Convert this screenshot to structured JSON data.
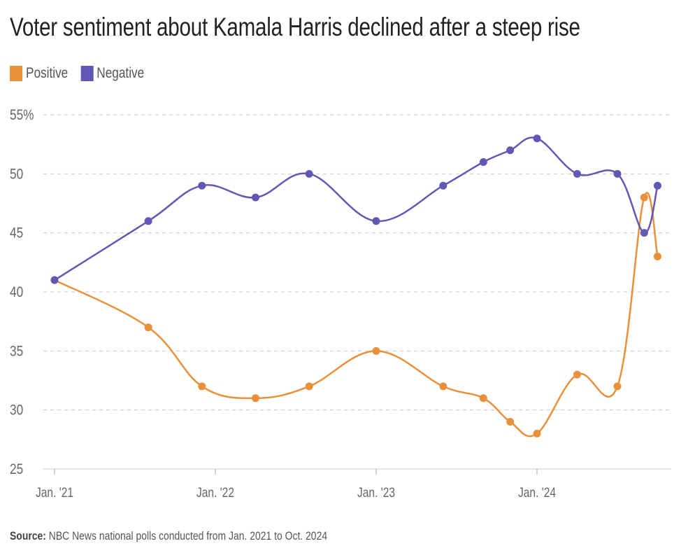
{
  "title": "Voter sentiment about Kamala Harris declined after a steep rise",
  "legend": [
    {
      "label": "Positive",
      "color": "#e8913a"
    },
    {
      "label": "Negative",
      "color": "#6158b4"
    }
  ],
  "source": {
    "label": "Source:",
    "text": "NBC News national polls conducted from Jan. 2021 to Oct. 2024"
  },
  "chart_data": {
    "type": "line",
    "xlabel": "",
    "ylabel": "",
    "ylim": [
      25,
      55
    ],
    "y_ticks": [
      25,
      30,
      35,
      40,
      45,
      50,
      55
    ],
    "y_tick_labels": [
      "25",
      "30",
      "35",
      "40",
      "45",
      "50",
      "55%"
    ],
    "x_ticks": [
      "2021-01",
      "2022-01",
      "2023-01",
      "2024-01"
    ],
    "x_tick_labels": [
      "Jan. '21",
      "Jan. '22",
      "Jan. '23",
      "Jan. '24"
    ],
    "grid": true,
    "legend_position": "top-left",
    "x": [
      "2021-01",
      "2021-08",
      "2021-12",
      "2022-04",
      "2022-08",
      "2023-01",
      "2023-06",
      "2023-09",
      "2023-11",
      "2024-01",
      "2024-04",
      "2024-07",
      "2024-09",
      "2024-10"
    ],
    "series": [
      {
        "name": "Positive",
        "color": "#e8913a",
        "values": [
          41,
          37,
          32,
          31,
          32,
          35,
          32,
          31,
          29,
          28,
          33,
          32,
          48,
          43
        ]
      },
      {
        "name": "Negative",
        "color": "#6158b4",
        "values": [
          41,
          46,
          49,
          48,
          50,
          46,
          49,
          51,
          52,
          53,
          50,
          50,
          45,
          49
        ]
      }
    ]
  }
}
